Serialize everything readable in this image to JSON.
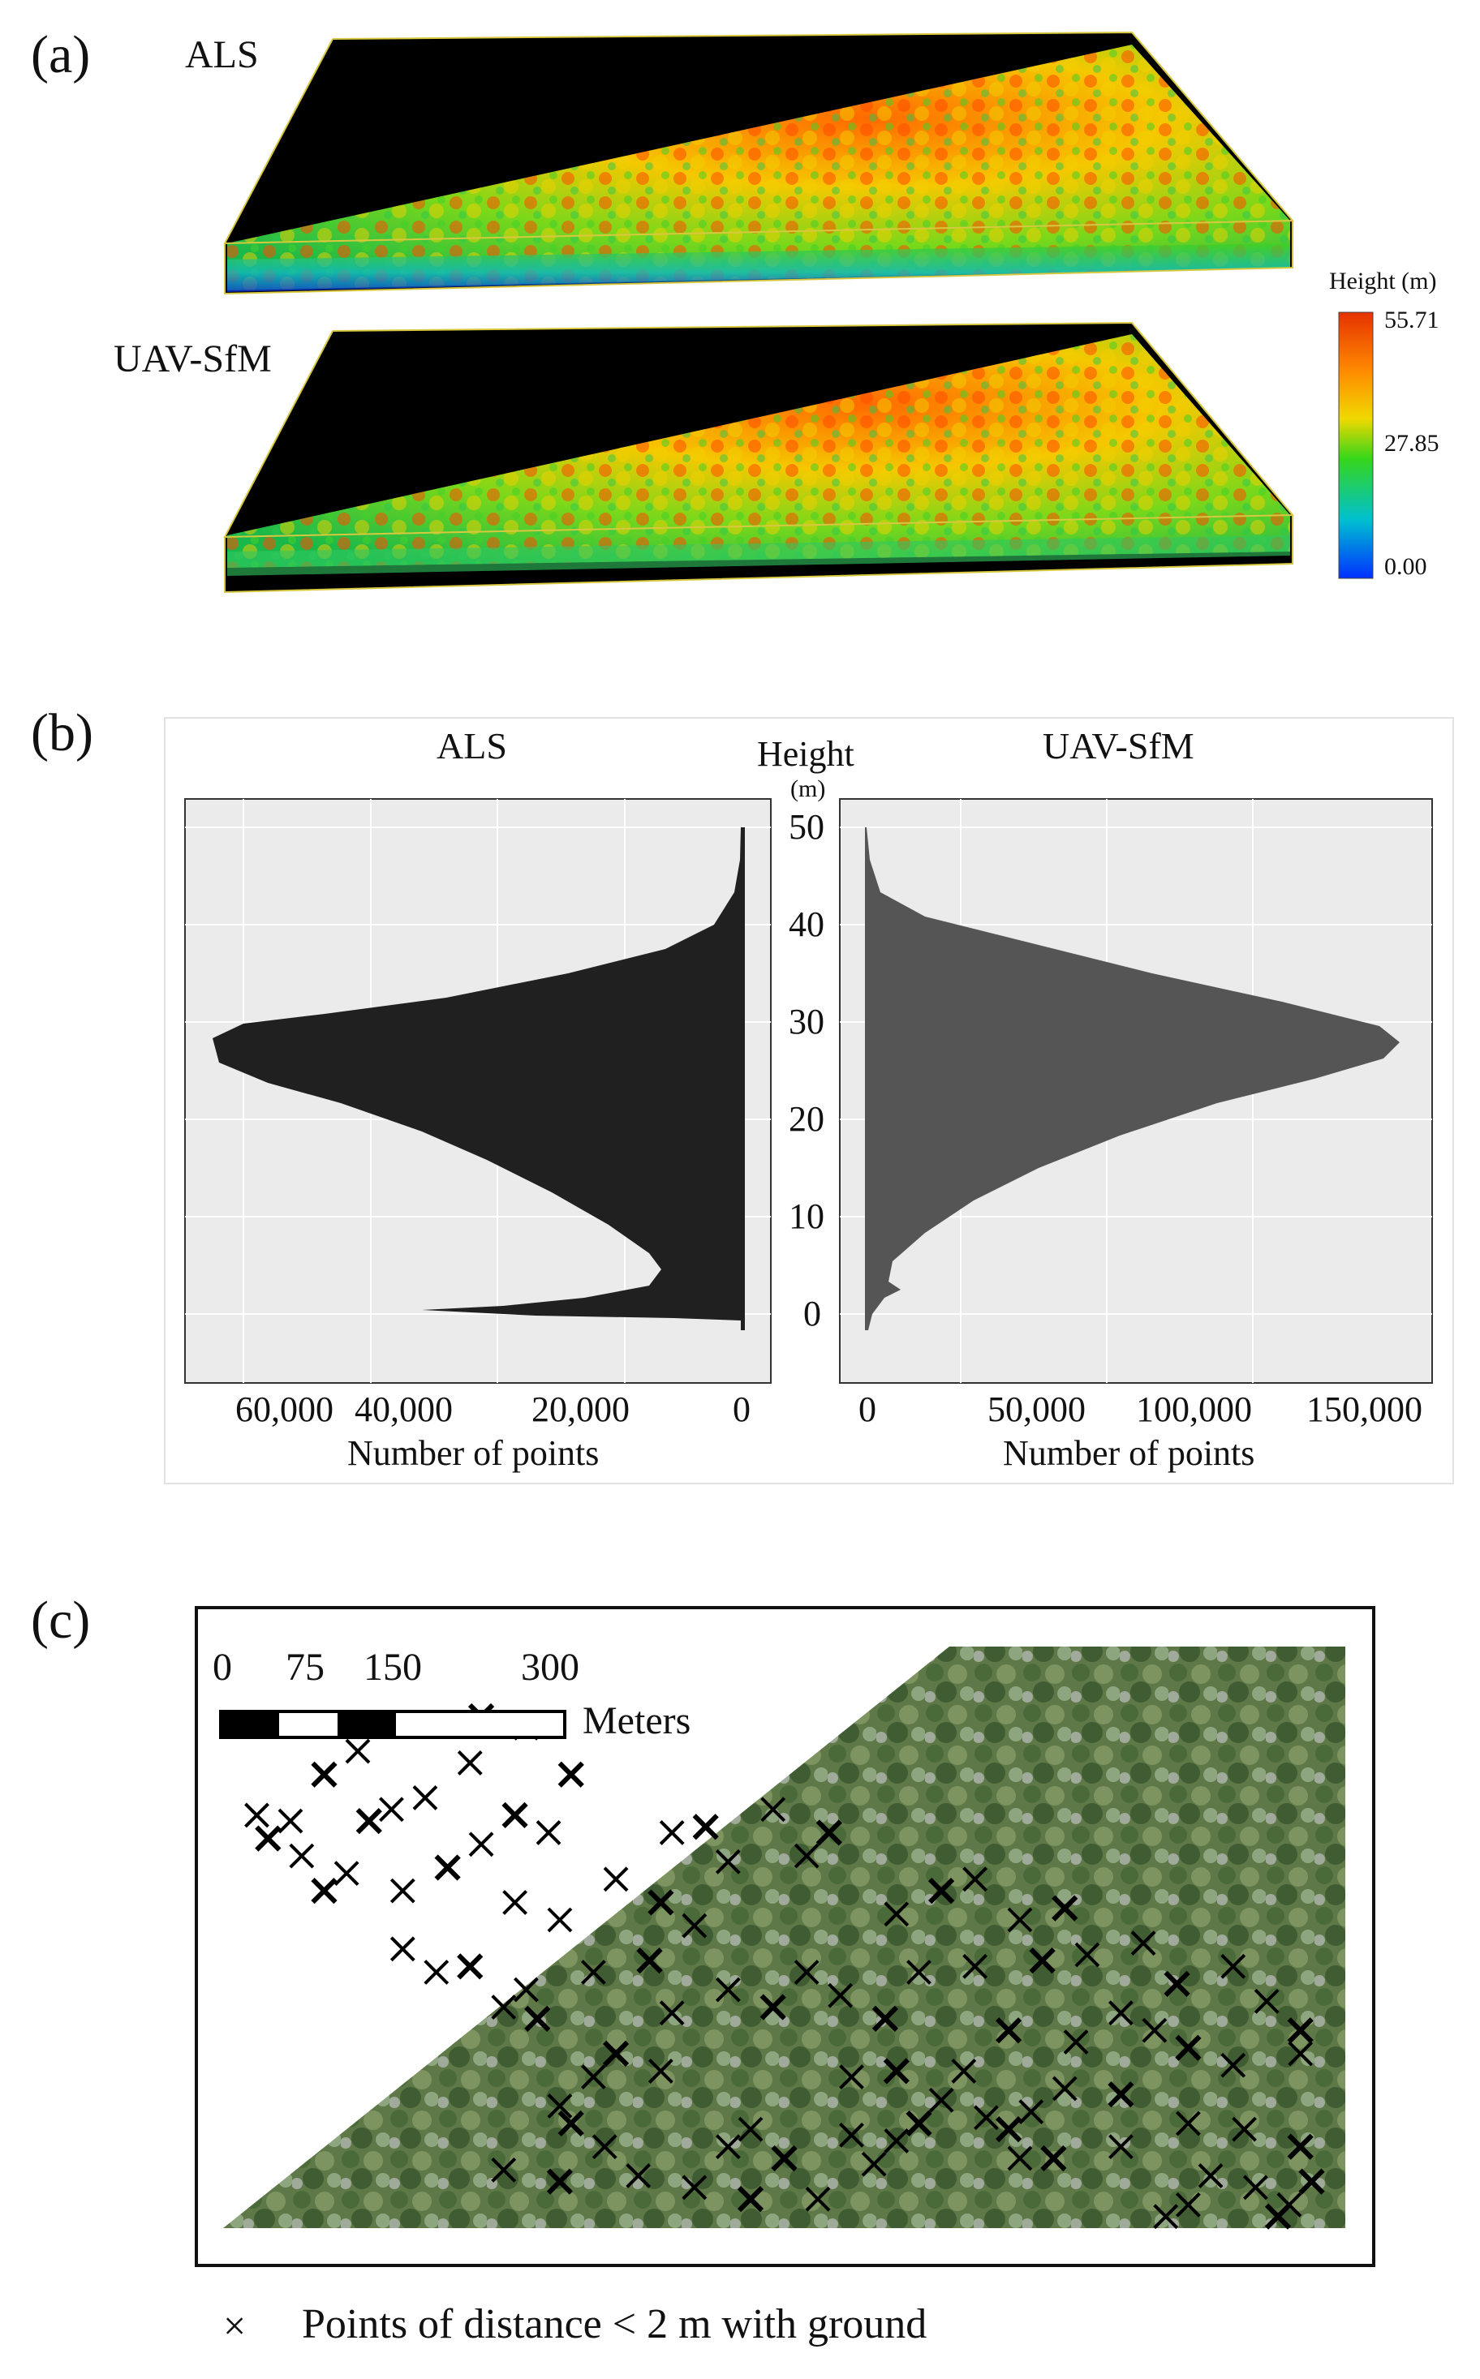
{
  "panel_a": {
    "letter": "(a)",
    "top_label": "ALS",
    "bottom_label": "UAV-SfM",
    "colorbar": {
      "title": "Height (m)",
      "max_label": "55.71",
      "mid_label": "27.85",
      "min_label": "0.00",
      "colors": [
        "#e53200",
        "#ff7a00",
        "#f2d800",
        "#36d61a",
        "#00c0d0",
        "#0030ff"
      ]
    }
  },
  "panel_b": {
    "letter": "(b)",
    "left_title": "ALS",
    "right_title": "UAV-SfM",
    "center_label_line1": "Height",
    "center_label_line2": "(m)",
    "left_xlabel": "Number of points",
    "right_xlabel": "Number of points",
    "left_ticks": [
      "60,000",
      "40,000",
      "20,000",
      "0"
    ],
    "right_ticks": [
      "0",
      "50,000",
      "100,000",
      "150,000"
    ],
    "y_ticks": [
      "50",
      "40",
      "30",
      "20",
      "10",
      "0"
    ]
  },
  "panel_c": {
    "letter": "(c)",
    "scale_labels": [
      "0",
      "75",
      "150",
      "300"
    ],
    "scale_unit": "Meters",
    "legend_symbol": "×",
    "legend_text": "Points of distance < 2 m with ground",
    "marker_clusters": [
      [
        0.94,
        0.98
      ],
      [
        0.95,
        0.96
      ],
      [
        0.92,
        0.93
      ],
      [
        0.97,
        0.92
      ],
      [
        0.84,
        0.98
      ],
      [
        0.86,
        0.96
      ],
      [
        0.7,
        0.83
      ],
      [
        0.72,
        0.8
      ],
      [
        0.68,
        0.81
      ],
      [
        0.74,
        0.88
      ],
      [
        0.8,
        0.86
      ],
      [
        0.71,
        0.88
      ],
      [
        0.62,
        0.82
      ],
      [
        0.6,
        0.85
      ],
      [
        0.56,
        0.84
      ],
      [
        0.5,
        0.88
      ],
      [
        0.45,
        0.86
      ],
      [
        0.47,
        0.83
      ],
      [
        0.31,
        0.82
      ],
      [
        0.34,
        0.86
      ],
      [
        0.33,
        0.74
      ],
      [
        0.35,
        0.7
      ],
      [
        0.39,
        0.73
      ],
      [
        0.3,
        0.79
      ],
      [
        0.28,
        0.64
      ],
      [
        0.27,
        0.59
      ],
      [
        0.25,
        0.62
      ],
      [
        0.22,
        0.55
      ],
      [
        0.19,
        0.56
      ],
      [
        0.16,
        0.52
      ],
      [
        0.09,
        0.42
      ],
      [
        0.11,
        0.39
      ],
      [
        0.07,
        0.36
      ],
      [
        0.04,
        0.33
      ],
      [
        0.03,
        0.29
      ],
      [
        0.06,
        0.3
      ],
      [
        0.13,
        0.3
      ],
      [
        0.15,
        0.28
      ],
      [
        0.18,
        0.26
      ],
      [
        0.09,
        0.22
      ],
      [
        0.12,
        0.18
      ],
      [
        0.17,
        0.13
      ],
      [
        0.23,
        0.12
      ],
      [
        0.27,
        0.14
      ],
      [
        0.23,
        0.34
      ],
      [
        0.26,
        0.29
      ],
      [
        0.29,
        0.32
      ],
      [
        0.22,
        0.2
      ],
      [
        0.31,
        0.22
      ],
      [
        0.35,
        0.4
      ],
      [
        0.4,
        0.32
      ],
      [
        0.43,
        0.31
      ],
      [
        0.45,
        0.37
      ],
      [
        0.49,
        0.28
      ],
      [
        0.54,
        0.32
      ],
      [
        0.52,
        0.36
      ],
      [
        0.6,
        0.46
      ],
      [
        0.64,
        0.42
      ],
      [
        0.67,
        0.4
      ],
      [
        0.71,
        0.47
      ],
      [
        0.75,
        0.45
      ],
      [
        0.77,
        0.53
      ],
      [
        0.82,
        0.51
      ],
      [
        0.85,
        0.58
      ],
      [
        0.9,
        0.55
      ],
      [
        0.93,
        0.61
      ],
      [
        0.96,
        0.66
      ],
      [
        0.96,
        0.7
      ],
      [
        0.9,
        0.72
      ],
      [
        0.86,
        0.69
      ],
      [
        0.83,
        0.66
      ],
      [
        0.8,
        0.63
      ],
      [
        0.73,
        0.54
      ],
      [
        0.67,
        0.55
      ],
      [
        0.62,
        0.56
      ],
      [
        0.59,
        0.64
      ],
      [
        0.55,
        0.6
      ],
      [
        0.52,
        0.56
      ],
      [
        0.49,
        0.62
      ],
      [
        0.45,
        0.59
      ],
      [
        0.4,
        0.63
      ],
      [
        0.38,
        0.54
      ],
      [
        0.33,
        0.56
      ],
      [
        0.42,
        0.48
      ],
      [
        0.39,
        0.44
      ],
      [
        0.3,
        0.47
      ],
      [
        0.26,
        0.44
      ],
      [
        0.2,
        0.38
      ],
      [
        0.16,
        0.42
      ],
      [
        0.56,
        0.74
      ],
      [
        0.6,
        0.73
      ],
      [
        0.64,
        0.78
      ],
      [
        0.66,
        0.73
      ],
      [
        0.7,
        0.66
      ],
      [
        0.76,
        0.68
      ],
      [
        0.75,
        0.76
      ],
      [
        0.8,
        0.77
      ],
      [
        0.86,
        0.82
      ],
      [
        0.91,
        0.83
      ],
      [
        0.96,
        0.86
      ],
      [
        0.88,
        0.91
      ],
      [
        0.53,
        0.95
      ],
      [
        0.47,
        0.95
      ],
      [
        0.42,
        0.93
      ],
      [
        0.37,
        0.91
      ],
      [
        0.3,
        0.92
      ],
      [
        0.25,
        0.9
      ],
      [
        0.58,
        0.89
      ]
    ]
  }
}
